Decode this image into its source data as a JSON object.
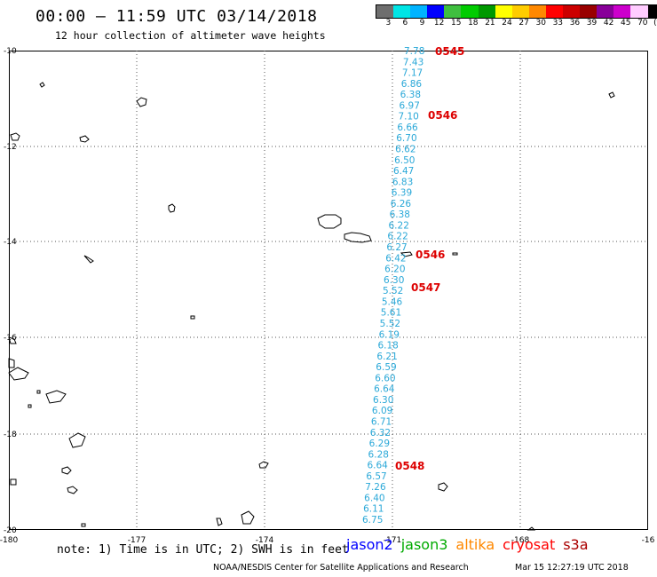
{
  "header": {
    "title": "00:00 – 11:59 UTC 03/14/2018",
    "subtitle": "12 hour collection of altimeter wave heights"
  },
  "colorbar": {
    "colors": [
      "#6e6e6e",
      "#00e5e5",
      "#00b3ff",
      "#0000ff",
      "#3fbf3f",
      "#00cc00",
      "#009900",
      "#ffff00",
      "#ffcc00",
      "#ff8800",
      "#ff0000",
      "#cc0000",
      "#990000",
      "#880099",
      "#cc00cc",
      "#ffccff",
      "#000000"
    ],
    "labels": [
      "3",
      "6",
      "9",
      "12",
      "15",
      "18",
      "21",
      "24",
      "27",
      "30",
      "33",
      "36",
      "39",
      "42",
      "45",
      "70",
      "(ft)"
    ]
  },
  "map": {
    "x_ticks": [
      "-180",
      "-177",
      "-174",
      "-171",
      "-168",
      "-16"
    ],
    "y_ticks": [
      "-10",
      "-12",
      "-14",
      "-16",
      "-18",
      "-20"
    ]
  },
  "track": {
    "color": "#2aa8d8",
    "values": [
      "7.78",
      "7.43",
      "7.17",
      "6.86",
      "6.38",
      "6.97",
      "7.10",
      "6.66",
      "6.70",
      "6.62",
      "6.50",
      "6.47",
      "6.83",
      "6.39",
      "6.26",
      "6.38",
      "6.22",
      "6.22",
      "6.27",
      "6.42",
      "6.20",
      "6.30",
      "5.52",
      "5.46",
      "5.61",
      "5.52",
      "6.19",
      "6.18",
      "6.21",
      "6.59",
      "6.60",
      "6.64",
      "6.30",
      "6.09",
      "6.71",
      "6.32",
      "6.29",
      "6.28",
      "6.64",
      "6.57",
      "7.26",
      "6.40",
      "6.11",
      "6.75"
    ]
  },
  "time_labels": {
    "color": "#dd0000",
    "items": [
      "0545",
      "0546",
      "0546",
      "0547",
      "0548"
    ]
  },
  "footer": {
    "note": "note: 1) Time is in UTC; 2) SWH is in feet",
    "satellites": [
      {
        "name": "jason2",
        "color": "#0000ff"
      },
      {
        "name": "jason3",
        "color": "#00aa00"
      },
      {
        "name": "altika",
        "color": "#ff8800"
      },
      {
        "name": "cryosat",
        "color": "#ff0000"
      },
      {
        "name": "s3a",
        "color": "#aa0000"
      }
    ],
    "credit": "NOAA/NESDIS Center for Satellite Applications and Research",
    "timestamp": "Mar 15 12:27:19 UTC 2018"
  }
}
